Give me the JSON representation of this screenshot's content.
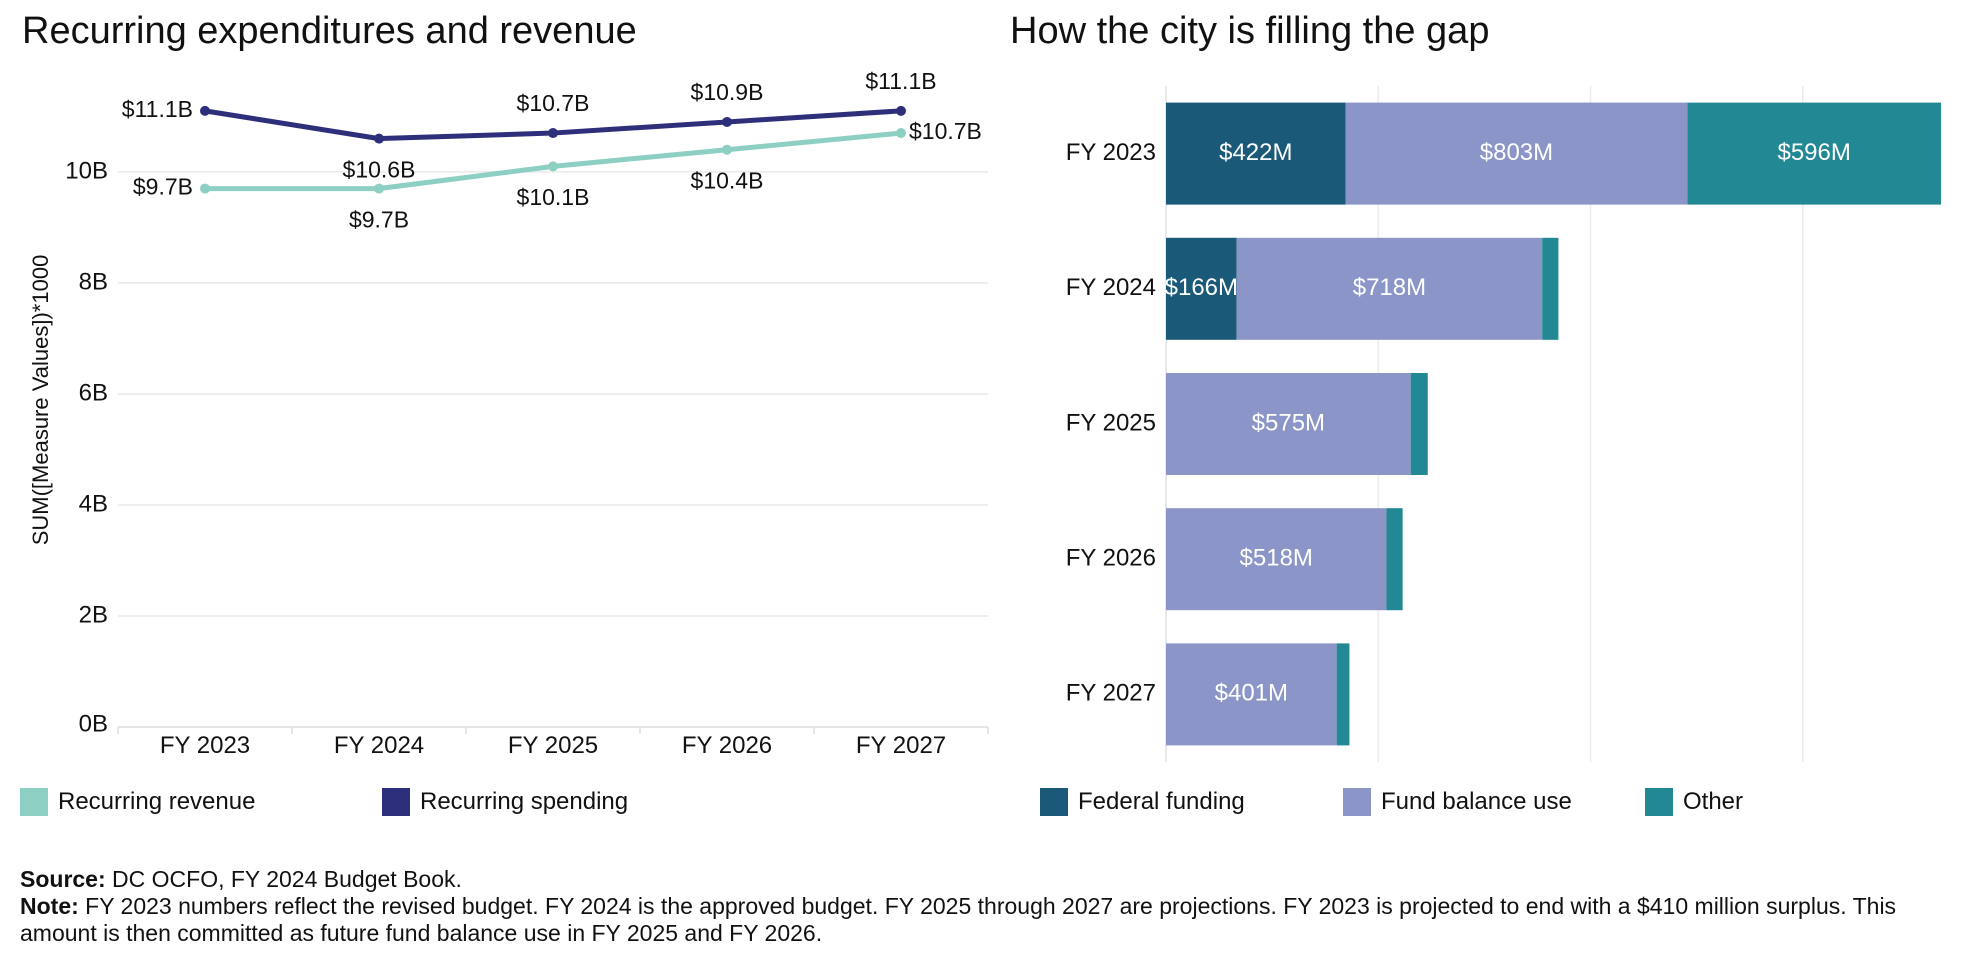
{
  "left_title": "Recurring expenditures and revenue",
  "right_title": "How the city is filling the gap",
  "legend_left": [
    {
      "label": "Recurring revenue",
      "color": "#8ecfc4"
    },
    {
      "label": "Recurring spending",
      "color": "#2e2f7a"
    }
  ],
  "legend_right": [
    {
      "label": "Federal funding",
      "color": "#1a5a78"
    },
    {
      "label": "Fund balance use",
      "color": "#8b95c7"
    },
    {
      "label": "Other",
      "color": "#228893"
    }
  ],
  "footer": {
    "source_label": "Source:",
    "source_text": " DC OCFO, FY 2024 Budget Book.",
    "note_label": "Note:",
    "note_text": " FY 2023 numbers reflect the revised budget. FY 2024 is the approved budget. FY 2025 through 2027 are projections. FY 2023 is projected to end with a $410 million surplus. This amount is then committed as future fund balance use in FY 2025 and FY 2026."
  },
  "chart_data": [
    {
      "type": "line",
      "title": "Recurring expenditures and revenue",
      "ylabel": "SUM([Measure Values])*1000",
      "categories": [
        "FY 2023",
        "FY 2024",
        "FY 2025",
        "FY 2026",
        "FY 2027"
      ],
      "ylim": [
        0,
        11.8
      ],
      "yticks": [
        0,
        2,
        4,
        6,
        8,
        10
      ],
      "ytick_labels": [
        "0B",
        "2B",
        "4B",
        "6B",
        "8B",
        "10B"
      ],
      "grid": true,
      "legend": "bottom",
      "series": [
        {
          "name": "Recurring revenue",
          "color": "#8ecfc4",
          "values": [
            9.7,
            9.7,
            10.1,
            10.4,
            10.7
          ],
          "labels": [
            "$9.7B",
            "$9.7B",
            "$10.1B",
            "$10.4B",
            "$10.7B"
          ]
        },
        {
          "name": "Recurring spending",
          "color": "#2e2f7a",
          "values": [
            11.1,
            10.6,
            10.7,
            10.9,
            11.1
          ],
          "labels": [
            "$11.1B",
            "$10.6B",
            "$10.7B",
            "$10.9B",
            "$11.1B"
          ]
        }
      ]
    },
    {
      "type": "bar",
      "orientation": "horizontal",
      "stacked": true,
      "title": "How the city is filling the gap",
      "categories": [
        "FY 2023",
        "FY 2024",
        "FY 2025",
        "FY 2026",
        "FY 2027"
      ],
      "xlim": [
        0,
        1900
      ],
      "legend": "bottom",
      "series": [
        {
          "name": "Federal funding",
          "color": "#1a5a78",
          "values": [
            422,
            166,
            0,
            0,
            0
          ],
          "labels": [
            "$422M",
            "$166M",
            "",
            "",
            ""
          ]
        },
        {
          "name": "Fund balance use",
          "color": "#8b95c7",
          "values": [
            803,
            718,
            575,
            518,
            401
          ],
          "labels": [
            "$803M",
            "$718M",
            "$575M",
            "$518M",
            "$401M"
          ]
        },
        {
          "name": "Other",
          "color": "#228893",
          "values": [
            596,
            38,
            40,
            38,
            30
          ],
          "labels": [
            "$596M",
            "",
            "",
            "",
            ""
          ]
        }
      ]
    }
  ]
}
